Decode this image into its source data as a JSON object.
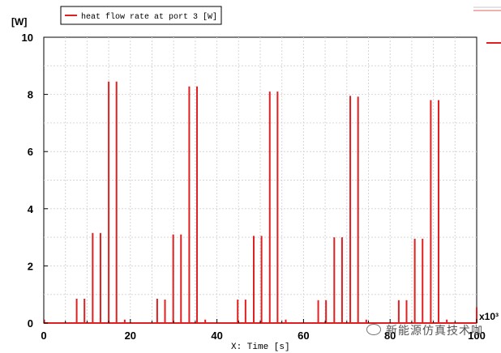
{
  "chart_data": {
    "type": "line",
    "legend": {
      "entries": [
        "heat flow rate at port 3 [W]"
      ],
      "placement": "top-left"
    },
    "ylabel": "[W]",
    "xlabel": "X: Time [s]",
    "x_multiplier": "x10³",
    "xlim": [
      0,
      100
    ],
    "ylim": [
      0,
      10
    ],
    "x_ticks": [
      0,
      20,
      40,
      60,
      80,
      100
    ],
    "y_ticks": [
      0,
      2,
      4,
      6,
      8,
      10
    ],
    "grid": true,
    "series": [
      {
        "name": "heat flow rate at port 3 [W]",
        "color": "#e02020",
        "spikes": [
          {
            "x": 0.1,
            "y": 0.12
          },
          {
            "x": 7.6,
            "y": 0.85
          },
          {
            "x": 9.4,
            "y": 0.85
          },
          {
            "x": 11.3,
            "y": 3.15
          },
          {
            "x": 13.1,
            "y": 3.15
          },
          {
            "x": 15.0,
            "y": 8.45
          },
          {
            "x": 16.8,
            "y": 8.45
          },
          {
            "x": 18.7,
            "y": 0.12
          },
          {
            "x": 26.2,
            "y": 0.85
          },
          {
            "x": 28.0,
            "y": 0.82
          },
          {
            "x": 29.9,
            "y": 3.1
          },
          {
            "x": 31.7,
            "y": 3.1
          },
          {
            "x": 33.6,
            "y": 8.28
          },
          {
            "x": 35.4,
            "y": 8.28
          },
          {
            "x": 37.3,
            "y": 0.12
          },
          {
            "x": 44.8,
            "y": 0.82
          },
          {
            "x": 46.6,
            "y": 0.82
          },
          {
            "x": 48.5,
            "y": 3.05
          },
          {
            "x": 50.3,
            "y": 3.05
          },
          {
            "x": 52.2,
            "y": 8.1
          },
          {
            "x": 54.0,
            "y": 8.1
          },
          {
            "x": 55.9,
            "y": 0.12
          },
          {
            "x": 63.4,
            "y": 0.8
          },
          {
            "x": 65.2,
            "y": 0.8
          },
          {
            "x": 67.1,
            "y": 3.0
          },
          {
            "x": 68.9,
            "y": 3.0
          },
          {
            "x": 70.8,
            "y": 7.95
          },
          {
            "x": 72.6,
            "y": 7.92
          },
          {
            "x": 74.5,
            "y": 0.12
          },
          {
            "x": 82.0,
            "y": 0.8
          },
          {
            "x": 83.8,
            "y": 0.8
          },
          {
            "x": 85.7,
            "y": 2.95
          },
          {
            "x": 87.5,
            "y": 2.95
          },
          {
            "x": 89.4,
            "y": 7.8
          },
          {
            "x": 91.2,
            "y": 7.8
          },
          {
            "x": 93.1,
            "y": 0.12
          },
          {
            "x": 100.0,
            "y": 0.55
          }
        ]
      }
    ]
  },
  "watermark": "新能源仿真技术咖"
}
